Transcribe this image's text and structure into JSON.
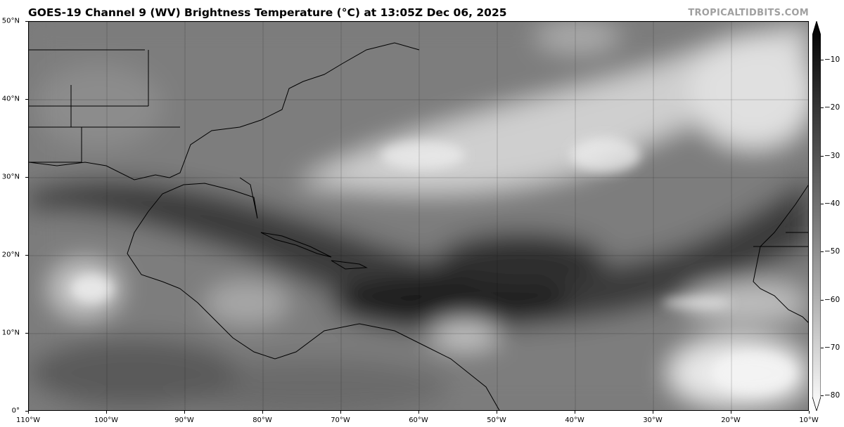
{
  "title": "GOES-19 Channel 9 (WV) Brightness Temperature (°C) at 13:05Z Dec 06, 2025",
  "credit": "TROPICALTIDBITS.COM",
  "map": {
    "lon_range": [
      -110,
      -10
    ],
    "lat_range": [
      0,
      50
    ],
    "gridlines": true,
    "lat_labels": [
      "50°N",
      "40°N",
      "30°N",
      "20°N",
      "10°N",
      "0°"
    ],
    "lon_labels": [
      "110°W",
      "100°W",
      "90°W",
      "80°W",
      "70°W",
      "60°W",
      "50°W",
      "40°W",
      "30°W",
      "20°W",
      "10°W"
    ]
  },
  "colorbar": {
    "label_values": [
      "−10",
      "−20",
      "−30",
      "−40",
      "−50",
      "−60",
      "−70",
      "−80"
    ],
    "values": [
      -10,
      -20,
      -30,
      -40,
      -50,
      -60,
      -70,
      -80
    ],
    "colormap": "grayscale (dark = warm, light = cold)",
    "extend": "both",
    "color_top": "#000000",
    "color_bottom": "#ffffff"
  }
}
